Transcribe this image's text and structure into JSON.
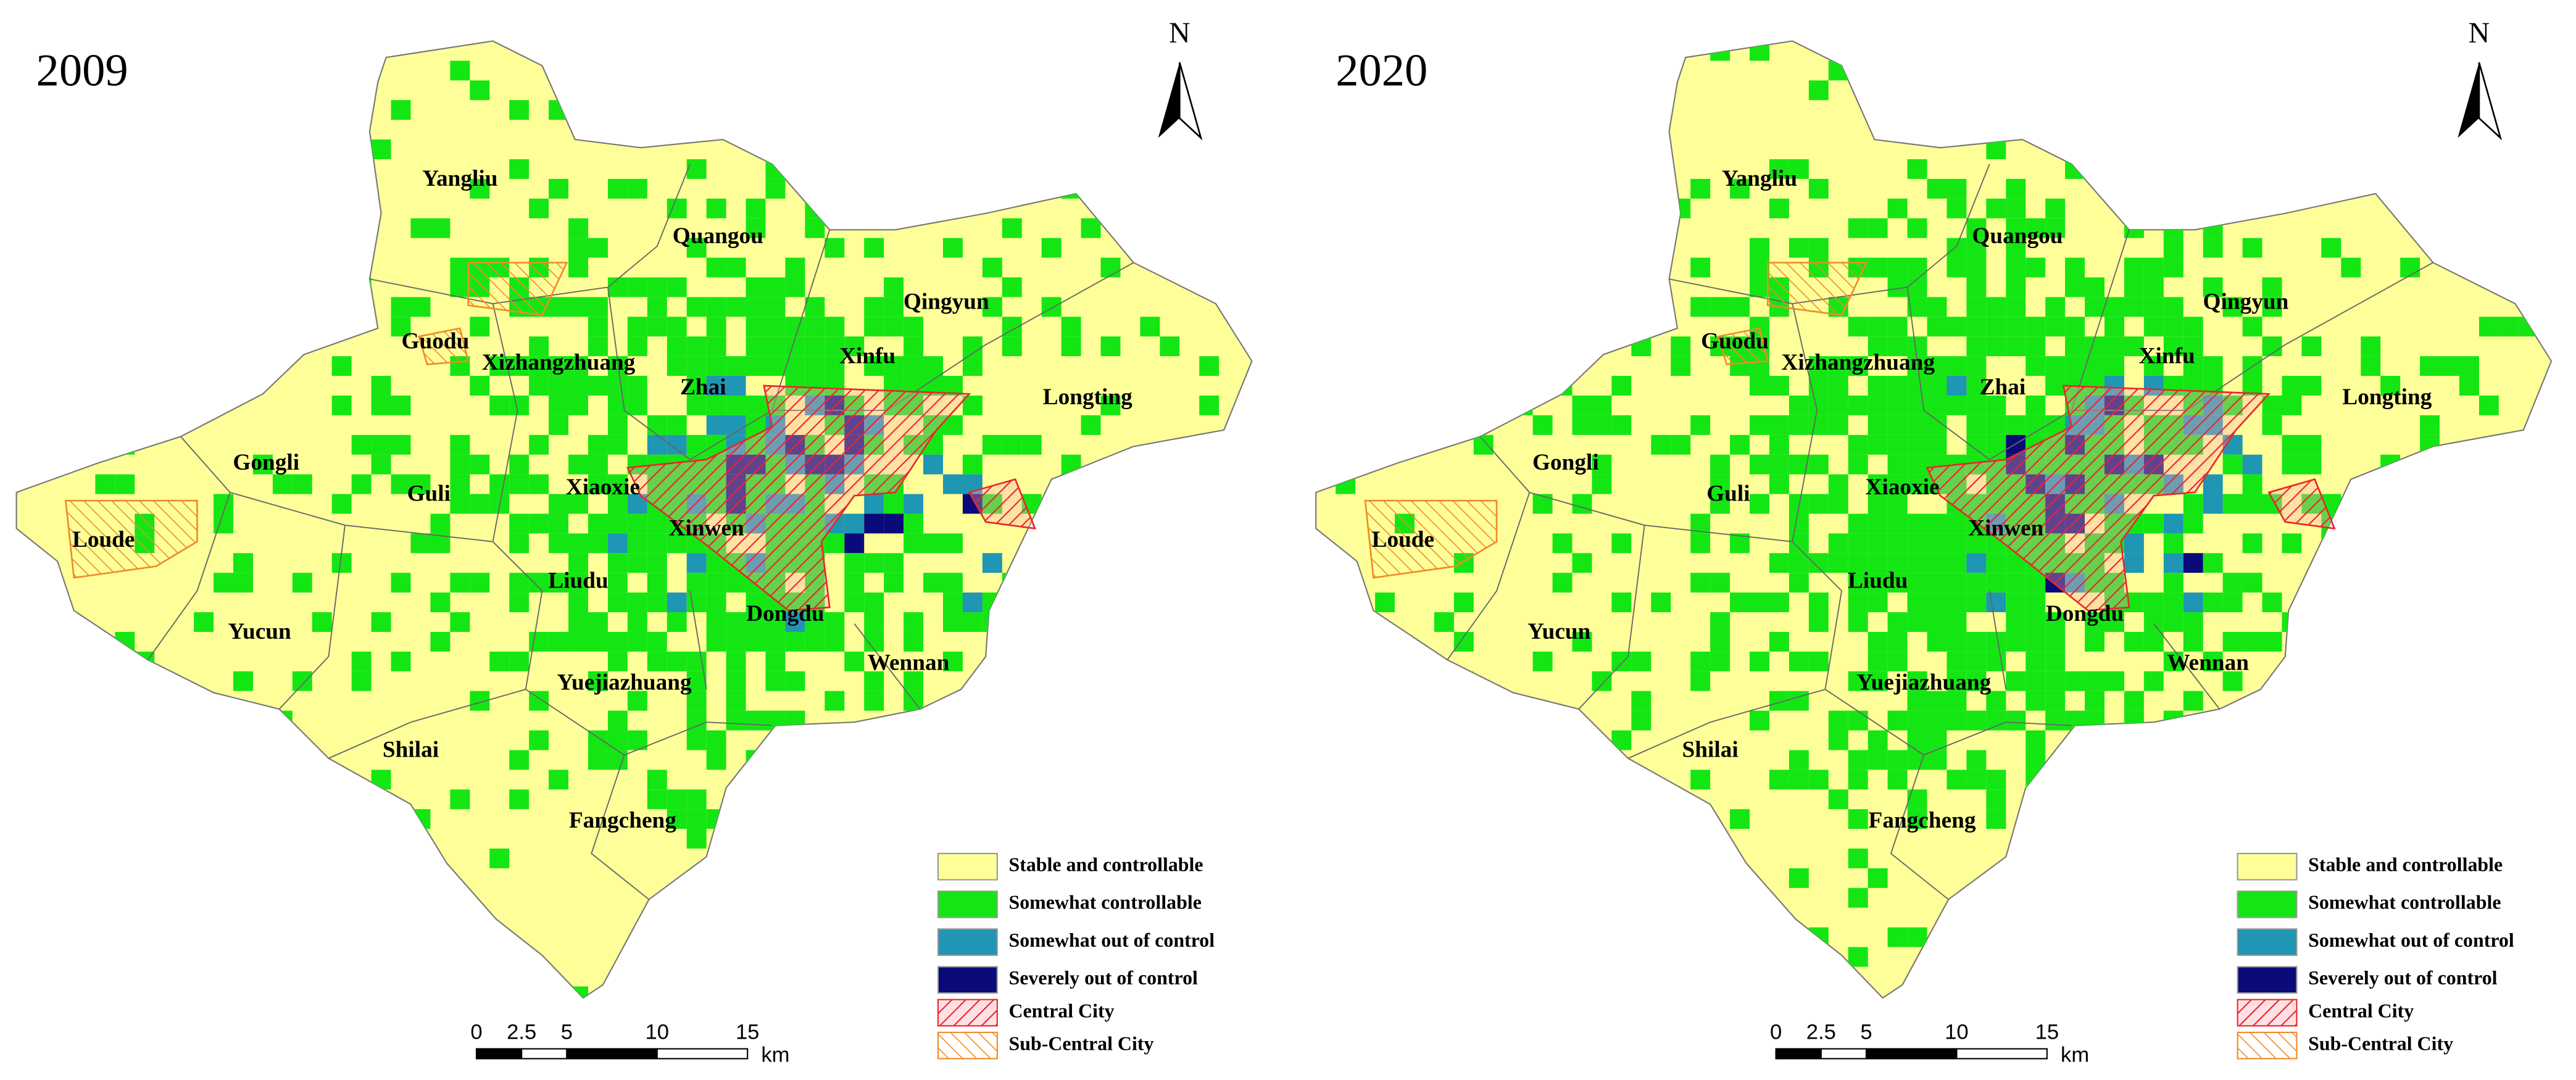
{
  "panels": [
    {
      "year": "2009",
      "places": [
        "Yangliu",
        "Quangou",
        "Qingyun",
        "Guodu",
        "Xizhangzhuang",
        "Zhai",
        "Xinfu",
        "Longting",
        "Gongli",
        "Guli",
        "Xiaoxie",
        "Loude",
        "Xinwen",
        "Liudu",
        "Yucun",
        "Dongdu",
        "Wennan",
        "Yuejiazhuang",
        "Shilai",
        "Fangcheng"
      ],
      "north": "N",
      "legend": [
        "Stable and controllable",
        "Somewhat controllable",
        "Somewhat out of control",
        "Severely out of control",
        "Central City",
        "Sub-Central City"
      ],
      "scale_bar": {
        "ticks": [
          0,
          2.5,
          5,
          10,
          15
        ],
        "unit": "km"
      }
    },
    {
      "year": "2020",
      "places": [
        "Yangliu",
        "Quangou",
        "Qingyun",
        "Guodu",
        "Xizhangzhuang",
        "Zhai",
        "Xinfu",
        "Longting",
        "Gongli",
        "Guli",
        "Xiaoxie",
        "Loude",
        "Xinwen",
        "Liudu",
        "Yucun",
        "Dongdu",
        "Wennan",
        "Yuejiazhuang",
        "Shilai",
        "Fangcheng"
      ],
      "north": "N",
      "legend": [
        "Stable and controllable",
        "Somewhat controllable",
        "Somewhat out of control",
        "Severely out of control",
        "Central City",
        "Sub-Central City"
      ],
      "scale_bar": {
        "ticks": [
          0,
          2.5,
          5,
          10,
          15
        ],
        "unit": "km"
      }
    }
  ]
}
